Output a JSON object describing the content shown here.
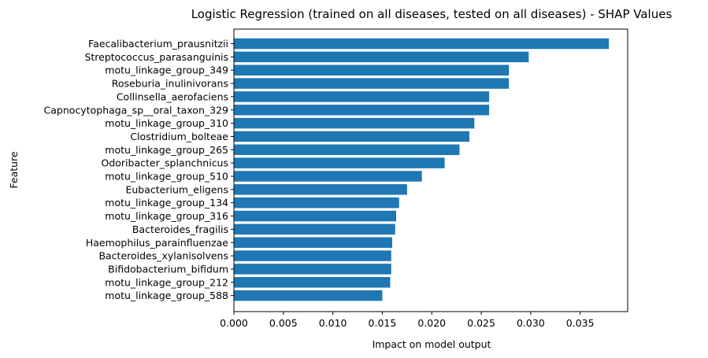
{
  "chart_data": {
    "type": "bar",
    "orientation": "horizontal",
    "title": "Logistic Regression (trained on all diseases, tested on all diseases) -  SHAP Values",
    "xlabel": "Impact on model output",
    "ylabel": "Feature",
    "xlim": [
      0,
      0.0398
    ],
    "x_ticks": [
      "0.000",
      "0.005",
      "0.010",
      "0.015",
      "0.020",
      "0.025",
      "0.030",
      "0.035"
    ],
    "grid": false,
    "bar_color": "#1f77b4",
    "categories": [
      "Faecalibacterium_prausnitzii",
      "Streptococcus_parasanguinis",
      "motu_linkage_group_349",
      "Roseburia_inulinivorans",
      "Collinsella_aerofaciens",
      "Capnocytophaga_sp__oral_taxon_329",
      "motu_linkage_group_310",
      "Clostridium_bolteae",
      "motu_linkage_group_265",
      "Odoribacter_splanchnicus",
      "motu_linkage_group_510",
      "Eubacterium_eligens",
      "motu_linkage_group_134",
      "motu_linkage_group_316",
      "Bacteroides_fragilis",
      "Haemophilus_parainfluenzae",
      "Bacteroides_xylanisolvens",
      "Bifidobacterium_bifidum",
      "motu_linkage_group_212",
      "motu_linkage_group_588"
    ],
    "values": [
      0.0379,
      0.0298,
      0.0278,
      0.0278,
      0.0258,
      0.0258,
      0.0243,
      0.0238,
      0.0228,
      0.0213,
      0.019,
      0.0175,
      0.0167,
      0.0164,
      0.0163,
      0.016,
      0.0159,
      0.0159,
      0.0158,
      0.015
    ]
  }
}
